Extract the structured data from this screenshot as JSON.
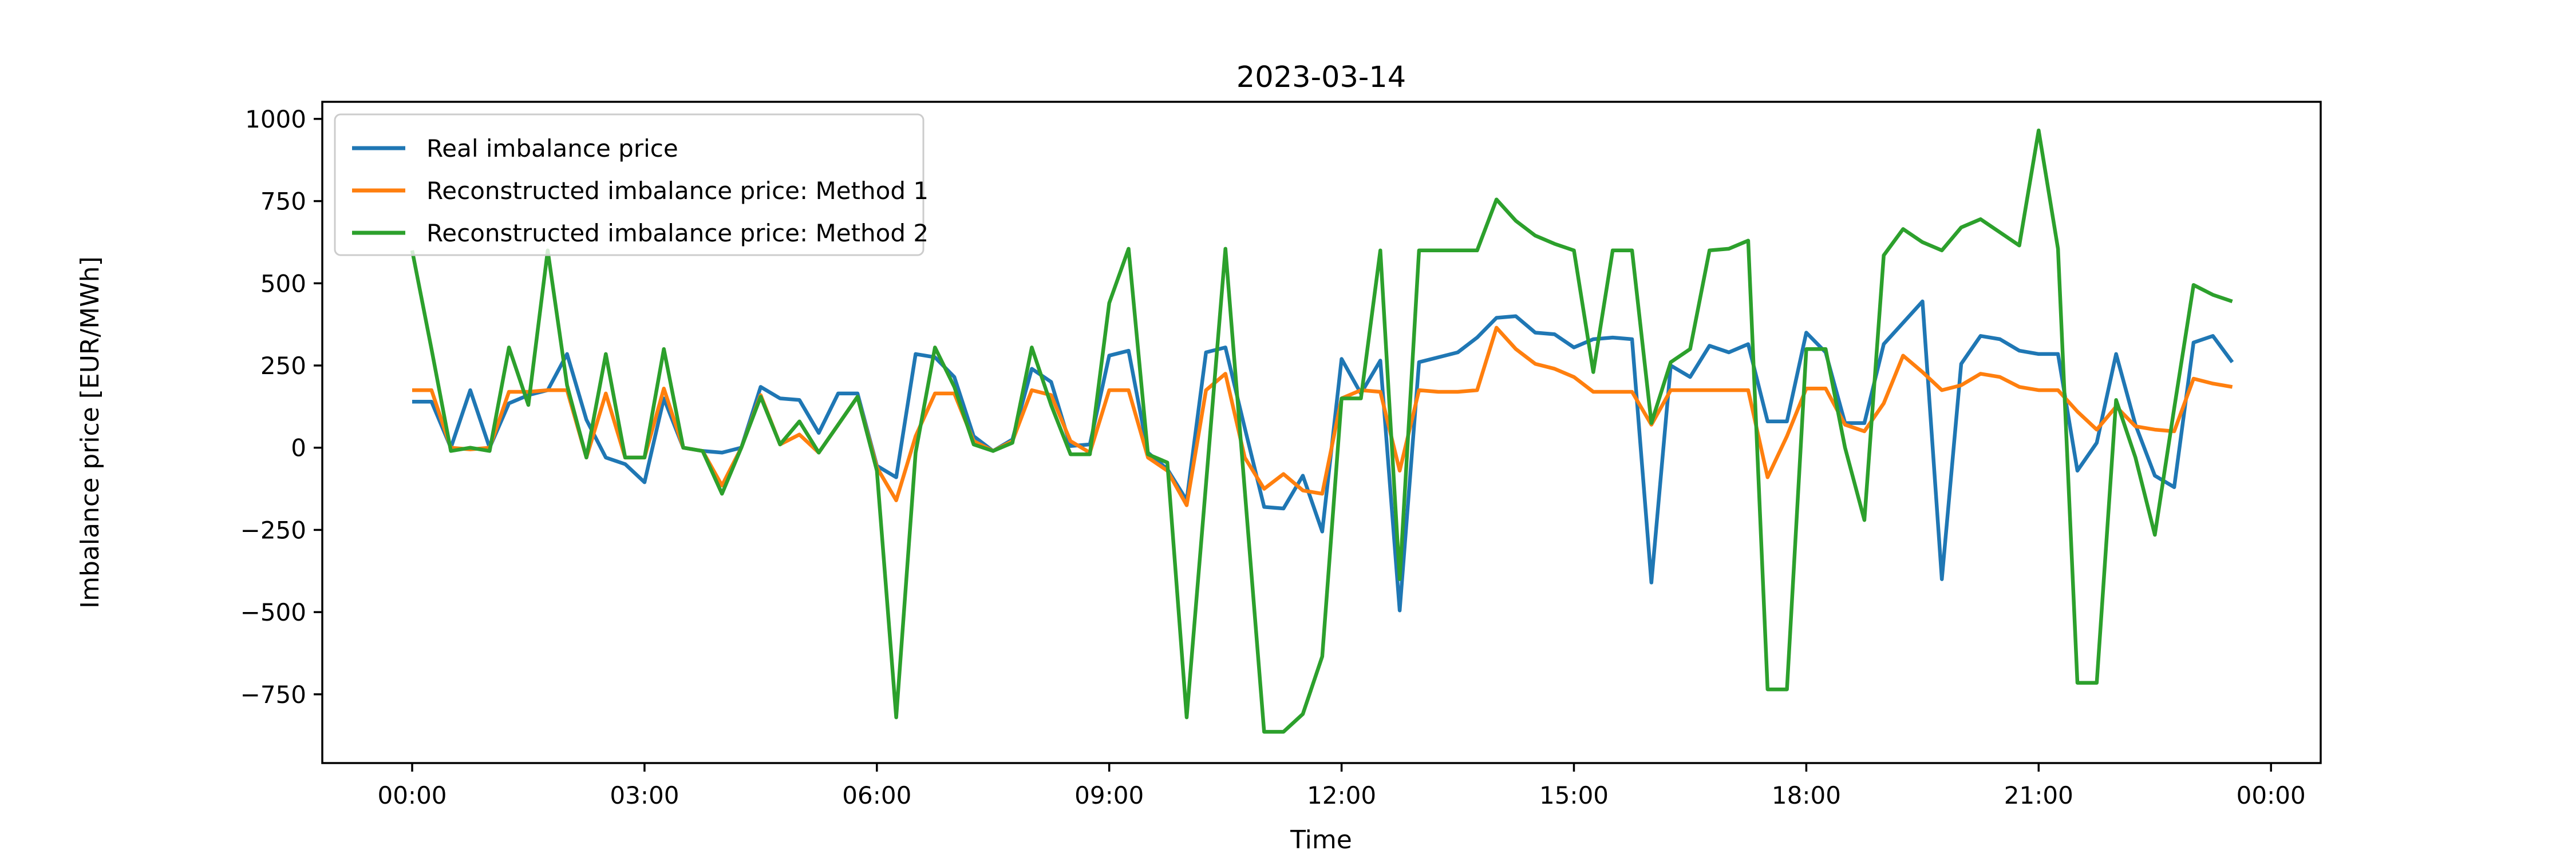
{
  "figure": {
    "title": "2023-03-14",
    "xlabel": "Time",
    "ylabel": "Imbalance price [EUR/MWh]"
  },
  "chart_data": {
    "type": "line",
    "title": "2023-03-14",
    "xlabel": "Time",
    "ylabel": "Imbalance price [EUR/MWh]",
    "grid": false,
    "legend_position": "upper left",
    "ylim": [
      -955,
      1056
    ],
    "y_ticks": [
      1000,
      750,
      500,
      250,
      0,
      -250,
      -500,
      -750
    ],
    "x_tick_labels": [
      "00:00",
      "03:00",
      "06:00",
      "09:00",
      "12:00",
      "15:00",
      "18:00",
      "21:00",
      "00:00"
    ],
    "x_step_minutes": 15,
    "times": [
      "00:00",
      "00:15",
      "00:30",
      "00:45",
      "01:00",
      "01:15",
      "01:30",
      "01:45",
      "02:00",
      "02:15",
      "02:30",
      "02:45",
      "03:00",
      "03:15",
      "03:30",
      "03:45",
      "04:00",
      "04:15",
      "04:30",
      "04:45",
      "05:00",
      "05:15",
      "05:30",
      "05:45",
      "06:00",
      "06:15",
      "06:30",
      "06:45",
      "07:00",
      "07:15",
      "07:30",
      "07:45",
      "08:00",
      "08:15",
      "08:30",
      "08:45",
      "09:00",
      "09:15",
      "09:30",
      "09:45",
      "10:00",
      "10:15",
      "10:30",
      "10:45",
      "11:00",
      "11:15",
      "11:30",
      "11:45",
      "12:00",
      "12:15",
      "12:30",
      "12:45",
      "13:00",
      "13:15",
      "13:30",
      "13:45",
      "14:00",
      "14:15",
      "14:30",
      "14:45",
      "15:00",
      "15:15",
      "15:30",
      "15:45",
      "16:00",
      "16:15",
      "16:30",
      "16:45",
      "17:00",
      "17:15",
      "17:30",
      "17:45",
      "18:00",
      "18:15",
      "18:30",
      "18:45",
      "19:00",
      "19:15",
      "19:30",
      "19:45",
      "20:00",
      "20:15",
      "20:30",
      "20:45",
      "21:00",
      "21:15",
      "21:30",
      "21:45",
      "22:00",
      "22:15",
      "22:30",
      "22:45",
      "23:00",
      "23:15",
      "23:30"
    ],
    "series": [
      {
        "name": "Real imbalance price",
        "color": "#1f77b4",
        "values": [
          140,
          140,
          0,
          175,
          0,
          135,
          160,
          175,
          285,
          85,
          -30,
          -50,
          -105,
          150,
          0,
          -10,
          -15,
          0,
          185,
          150,
          145,
          45,
          165,
          165,
          -55,
          -90,
          285,
          275,
          215,
          35,
          -10,
          25,
          240,
          200,
          5,
          10,
          280,
          295,
          -15,
          -65,
          -160,
          290,
          305,
          60,
          -180,
          -185,
          -85,
          -255,
          270,
          165,
          265,
          -495,
          260,
          275,
          290,
          335,
          395,
          400,
          350,
          345,
          305,
          330,
          335,
          330,
          -410,
          250,
          215,
          310,
          290,
          315,
          80,
          80,
          350,
          290,
          75,
          75,
          315,
          380,
          445,
          -400,
          255,
          340,
          330,
          295,
          285,
          285,
          -70,
          15,
          285,
          70,
          -85,
          -120,
          320,
          340,
          260
        ]
      },
      {
        "name": "Reconstructed imbalance price: Method 1",
        "color": "#ff7f0e",
        "values": [
          175,
          175,
          0,
          -5,
          0,
          170,
          170,
          175,
          175,
          -30,
          165,
          -30,
          -30,
          180,
          0,
          -10,
          -115,
          0,
          160,
          10,
          40,
          -15,
          70,
          155,
          -60,
          -160,
          35,
          165,
          165,
          20,
          -10,
          20,
          175,
          160,
          20,
          -15,
          175,
          175,
          -30,
          -70,
          -175,
          175,
          225,
          -30,
          -125,
          -80,
          -130,
          -140,
          150,
          175,
          170,
          -70,
          175,
          170,
          170,
          175,
          365,
          300,
          255,
          240,
          215,
          170,
          170,
          170,
          70,
          175,
          175,
          175,
          175,
          175,
          -90,
          35,
          180,
          180,
          70,
          50,
          135,
          280,
          230,
          175,
          190,
          225,
          215,
          185,
          175,
          175,
          110,
          55,
          125,
          65,
          55,
          50,
          210,
          195,
          185
        ]
      },
      {
        "name": "Reconstructed imbalance price: Method 2",
        "color": "#2ca02c",
        "values": [
          600,
          300,
          -10,
          0,
          -10,
          305,
          130,
          600,
          190,
          -30,
          285,
          -30,
          -30,
          300,
          0,
          -10,
          -140,
          0,
          155,
          10,
          80,
          -15,
          70,
          155,
          -70,
          -820,
          -15,
          305,
          185,
          10,
          -10,
          15,
          305,
          130,
          -20,
          -20,
          440,
          605,
          -20,
          -45,
          -820,
          -110,
          605,
          -130,
          -864,
          -864,
          -810,
          -635,
          150,
          150,
          600,
          -400,
          600,
          600,
          600,
          600,
          755,
          690,
          645,
          620,
          600,
          230,
          600,
          600,
          75,
          260,
          300,
          600,
          605,
          630,
          -735,
          -735,
          300,
          300,
          0,
          -220,
          585,
          665,
          625,
          600,
          670,
          695,
          655,
          615,
          965,
          605,
          -715,
          -715,
          145,
          -30,
          -265,
          120,
          495,
          465,
          445
        ]
      }
    ]
  }
}
